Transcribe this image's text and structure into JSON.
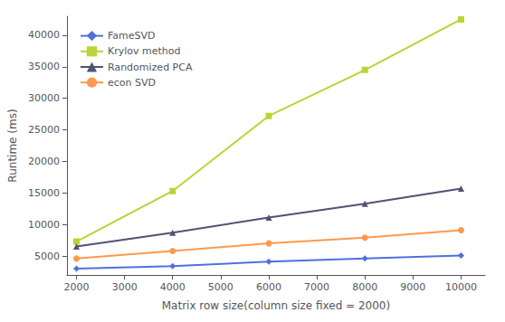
{
  "chart_data": {
    "type": "line",
    "xlabel": "Matrix row size(column size fixed = 2000)",
    "ylabel": "Runtime (ms)",
    "x": [
      2000,
      4000,
      6000,
      8000,
      10000
    ],
    "series": [
      {
        "name": "FameSVD",
        "marker": "diamond",
        "values": [
          3000,
          3400,
          4100,
          4600,
          5100
        ]
      },
      {
        "name": "Krylov method",
        "marker": "square",
        "values": [
          7300,
          15300,
          27200,
          34500,
          42500
        ]
      },
      {
        "name": "Randomized PCA",
        "marker": "triangle",
        "values": [
          6500,
          8700,
          11100,
          13300,
          15700
        ]
      },
      {
        "name": "econ SVD",
        "marker": "circle",
        "values": [
          4600,
          5800,
          7000,
          7900,
          9100
        ]
      }
    ],
    "xlim": [
      1800,
      10500
    ],
    "xticks": [
      2000,
      3000,
      4000,
      5000,
      6000,
      7000,
      8000,
      9000,
      10000
    ],
    "ylim": [
      2000,
      43000
    ],
    "yticks": [
      5000,
      10000,
      15000,
      20000,
      25000,
      30000,
      35000,
      40000
    ],
    "grid": false,
    "legend": "upper left"
  }
}
